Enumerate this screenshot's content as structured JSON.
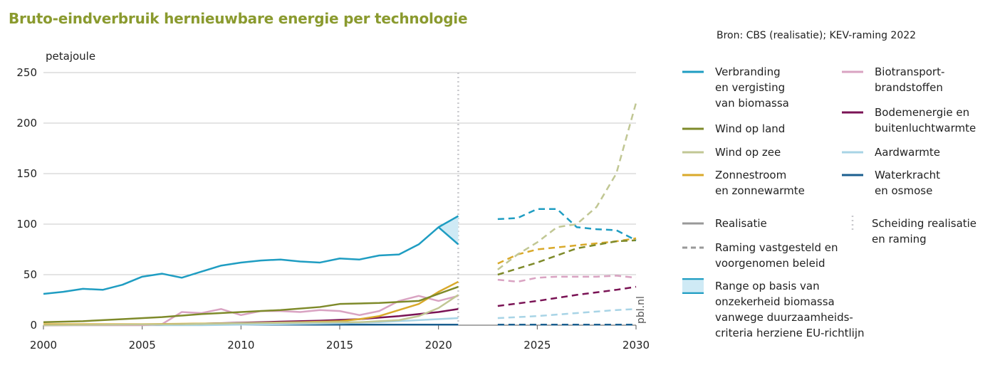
{
  "title": "Bruto-eindverbruik hernieuwbare energie per technologie",
  "source": "Bron: CBS (realisatie); KEV-raming 2022",
  "watermark": "pbl.nl",
  "chart_data": {
    "type": "line",
    "ylabel": "petajoule",
    "ylim": [
      0,
      250
    ],
    "yticks": [
      0,
      50,
      100,
      150,
      200,
      250
    ],
    "xlim": [
      2000,
      2030
    ],
    "xticks": [
      2000,
      2005,
      2010,
      2015,
      2020,
      2025,
      2030
    ],
    "separator_year": 2021,
    "legend_position": "right",
    "series": [
      {
        "name": "Verbranding\nen vergisting\nvan biomassa",
        "color": "#1f9dc2",
        "realisation": {
          "x": [
            2000,
            2001,
            2002,
            2003,
            2004,
            2005,
            2006,
            2007,
            2008,
            2009,
            2010,
            2011,
            2012,
            2013,
            2014,
            2015,
            2016,
            2017,
            2018,
            2019,
            2020,
            2021
          ],
          "y": [
            31,
            33,
            36,
            35,
            40,
            48,
            51,
            47,
            53,
            59,
            62,
            64,
            65,
            63,
            62,
            66,
            65,
            69,
            70,
            80,
            97,
            108
          ]
        },
        "range_2020_2021": {
          "x": [
            2020,
            2021
          ],
          "low": [
            97,
            80
          ],
          "high": [
            97,
            108
          ]
        },
        "projection": {
          "x": [
            2023,
            2024,
            2025,
            2026,
            2027,
            2028,
            2029,
            2030
          ],
          "y": [
            105,
            106,
            115,
            115,
            97,
            95,
            94,
            84
          ]
        }
      },
      {
        "name": "Wind op land",
        "color": "#7e8a2a",
        "realisation": {
          "x": [
            2000,
            2002,
            2004,
            2006,
            2008,
            2010,
            2012,
            2014,
            2015,
            2017,
            2019,
            2021
          ],
          "y": [
            3,
            4,
            6,
            8,
            11,
            13,
            15,
            18,
            21,
            22,
            24,
            38
          ]
        },
        "projection": {
          "x": [
            2023,
            2025,
            2027,
            2029,
            2030
          ],
          "y": [
            50,
            62,
            76,
            83,
            84
          ]
        }
      },
      {
        "name": "Wind op zee",
        "color": "#c1c794",
        "realisation": {
          "x": [
            2000,
            2007,
            2010,
            2015,
            2016,
            2017,
            2018,
            2019,
            2020,
            2021
          ],
          "y": [
            0,
            1,
            2,
            3,
            3,
            4,
            5,
            9,
            17,
            30
          ]
        },
        "projection": {
          "x": [
            2023,
            2024,
            2025,
            2026,
            2027,
            2028,
            2029,
            2030
          ],
          "y": [
            55,
            70,
            82,
            97,
            100,
            117,
            150,
            220
          ]
        }
      },
      {
        "name": "Zonnestroom\nen zonnewarmte",
        "color": "#d9a92a",
        "realisation": {
          "x": [
            2000,
            2005,
            2010,
            2013,
            2015,
            2016,
            2017,
            2018,
            2019,
            2020,
            2021
          ],
          "y": [
            1,
            1,
            2,
            3,
            4,
            6,
            9,
            15,
            21,
            33,
            43
          ]
        },
        "projection": {
          "x": [
            2023,
            2024,
            2025,
            2026,
            2027,
            2028,
            2029,
            2030
          ],
          "y": [
            61,
            70,
            75,
            77,
            79,
            81,
            83,
            86
          ]
        }
      },
      {
        "name": "Biotransport-\nbrandstoffen",
        "color": "#d9a3c2",
        "realisation": {
          "x": [
            2000,
            2005,
            2006,
            2007,
            2008,
            2009,
            2010,
            2011,
            2012,
            2013,
            2014,
            2015,
            2016,
            2017,
            2018,
            2019,
            2020,
            2021
          ],
          "y": [
            0,
            0,
            1,
            13,
            12,
            16,
            10,
            14,
            14,
            13,
            15,
            14,
            10,
            14,
            24,
            29,
            24,
            29
          ]
        },
        "projection": {
          "x": [
            2023,
            2024,
            2025,
            2026,
            2027,
            2028,
            2029,
            2030
          ],
          "y": [
            45,
            43,
            47,
            48,
            48,
            48,
            49,
            47
          ]
        }
      },
      {
        "name": "Bodemenergie en\nbuitenluchtwarmte",
        "color": "#7a1355",
        "realisation": {
          "x": [
            2000,
            2005,
            2008,
            2010,
            2012,
            2014,
            2016,
            2018,
            2020,
            2021
          ],
          "y": [
            0,
            0.5,
            1.5,
            2.5,
            3.5,
            4.5,
            6,
            9,
            13,
            16
          ]
        },
        "projection": {
          "x": [
            2023,
            2025,
            2027,
            2029,
            2030
          ],
          "y": [
            19,
            24,
            30,
            35,
            38
          ]
        }
      },
      {
        "name": "Aardwarmte",
        "color": "#a8d4e6",
        "realisation": {
          "x": [
            2000,
            2008,
            2012,
            2015,
            2017,
            2019,
            2021
          ],
          "y": [
            0,
            0,
            1,
            2,
            3,
            5,
            7
          ]
        },
        "projection": {
          "x": [
            2023,
            2025,
            2027,
            2029,
            2030
          ],
          "y": [
            7,
            9,
            12,
            15,
            16
          ]
        }
      },
      {
        "name": "Waterkracht\nen osmose",
        "color": "#1b5f8f",
        "realisation": {
          "x": [
            2000,
            2021
          ],
          "y": [
            0.5,
            0.5
          ]
        },
        "projection": {
          "x": [
            2023,
            2030
          ],
          "y": [
            0.5,
            0.5
          ]
        }
      }
    ]
  },
  "legend_styles": [
    {
      "name": "Realisatie",
      "style": "solid"
    },
    {
      "name": "Raming vastgesteld en\nvoorgenomen beleid",
      "style": "dashed"
    },
    {
      "name": "Range op basis van\nonzekerheid biomassa\nvanwege duurzaamheids-\ncriteria herziene EU-richtlijn",
      "style": "range"
    },
    {
      "name": "Scheiding realisatie\nen raming",
      "style": "separator"
    }
  ]
}
